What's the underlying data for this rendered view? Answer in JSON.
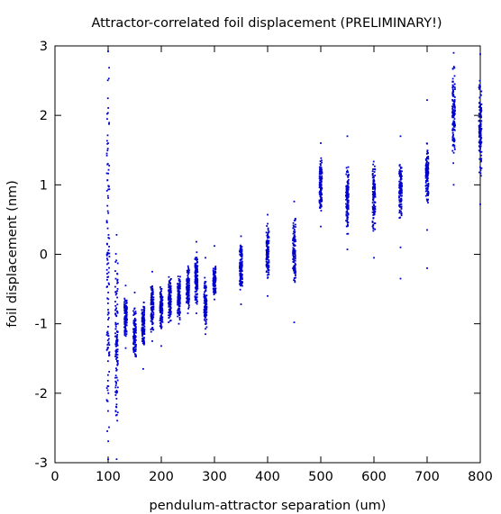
{
  "chart_data": {
    "type": "scatter",
    "title": "Attractor-correlated foil displacement (PRELIMINARY!)",
    "xlabel": "pendulum-attractor separation (um)",
    "ylabel": "foil displacement (nm)",
    "xlim": [
      0,
      800
    ],
    "ylim": [
      -3,
      3
    ],
    "xticks": [
      0,
      100,
      200,
      300,
      400,
      500,
      600,
      700,
      800
    ],
    "yticks": [
      -3,
      -2,
      -1,
      0,
      1,
      2,
      3
    ],
    "xtick_labels": [
      "0",
      "100",
      "200",
      "300",
      "400",
      "500",
      "600",
      "700",
      "800"
    ],
    "ytick_labels": [
      "-3",
      "-2",
      "-1",
      "0",
      "1",
      "2",
      "3"
    ],
    "grid": false,
    "marker_color": "#0000cc",
    "series": [
      {
        "clusters": [
          {
            "x": 100,
            "core": [
              -3.0,
              3.0
            ],
            "outliers": [
              2.92,
              -2.95
            ]
          },
          {
            "x": 116,
            "core": [
              -2.6,
              0.2
            ],
            "outliers": [
              0.28,
              -2.95
            ]
          },
          {
            "x": 133,
            "core": [
              -1.2,
              -0.6
            ],
            "outliers": [
              -0.45,
              -1.35
            ]
          },
          {
            "x": 150,
            "core": [
              -1.5,
              -0.75
            ],
            "outliers": [
              -0.55
            ]
          },
          {
            "x": 166,
            "core": [
              -1.35,
              -0.6
            ],
            "outliers": [
              -1.65
            ]
          },
          {
            "x": 183,
            "core": [
              -1.15,
              -0.4
            ],
            "outliers": [
              -0.25,
              -1.25
            ]
          },
          {
            "x": 200,
            "core": [
              -1.1,
              -0.45
            ],
            "outliers": [
              -1.32
            ]
          },
          {
            "x": 216,
            "core": [
              -1.0,
              -0.3
            ],
            "outliers": []
          },
          {
            "x": 233,
            "core": [
              -0.95,
              -0.3
            ],
            "outliers": [
              -1.0
            ]
          },
          {
            "x": 250,
            "core": [
              -0.8,
              -0.15
            ],
            "outliers": [
              -0.85
            ]
          },
          {
            "x": 266,
            "core": [
              -0.75,
              0.1
            ],
            "outliers": [
              0.18,
              -0.85
            ]
          },
          {
            "x": 283,
            "core": [
              -1.1,
              -0.3
            ],
            "outliers": [
              -0.05,
              -1.15
            ]
          },
          {
            "x": 300,
            "core": [
              -0.6,
              -0.15
            ],
            "outliers": [
              0.12,
              -0.65
            ]
          },
          {
            "x": 350,
            "core": [
              -0.55,
              0.2
            ],
            "outliers": [
              0.26,
              -0.72
            ]
          },
          {
            "x": 400,
            "core": [
              -0.4,
              0.45
            ],
            "outliers": [
              0.57,
              -0.6
            ]
          },
          {
            "x": 450,
            "core": [
              -0.5,
              0.62
            ],
            "outliers": [
              0.76,
              -0.98
            ]
          },
          {
            "x": 500,
            "core": [
              0.6,
              1.42
            ],
            "outliers": [
              1.6,
              0.4
            ]
          },
          {
            "x": 550,
            "core": [
              0.25,
              1.3
            ],
            "outliers": [
              1.7,
              0.07
            ]
          },
          {
            "x": 600,
            "core": [
              0.25,
              1.38
            ],
            "outliers": [
              -0.05
            ]
          },
          {
            "x": 650,
            "core": [
              0.45,
              1.35
            ],
            "outliers": [
              1.7,
              0.1,
              -0.35
            ]
          },
          {
            "x": 700,
            "core": [
              0.7,
              1.65
            ],
            "outliers": [
              2.22,
              0.35,
              -0.2
            ]
          },
          {
            "x": 750,
            "core": [
              1.2,
              2.8
            ],
            "outliers": [
              2.9,
              1.0
            ]
          },
          {
            "x": 800,
            "core": [
              1.0,
              2.55
            ],
            "outliers": [
              2.88,
              0.72
            ]
          }
        ]
      }
    ]
  }
}
